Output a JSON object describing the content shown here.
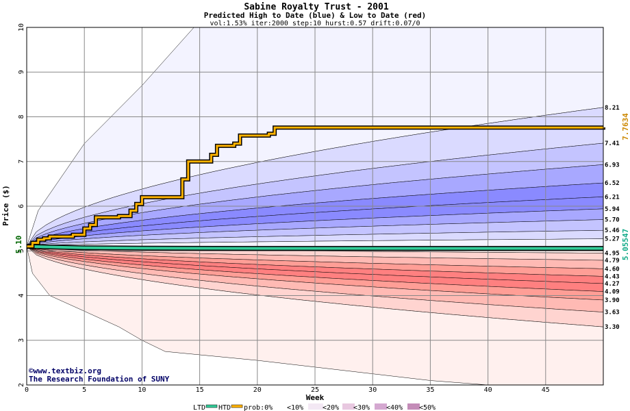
{
  "chart_data": {
    "type": "area",
    "title": "Sabine Royalty Trust - 2001",
    "subtitle": "Predicted High to Date (blue) &  Low to Date (red)",
    "params": "vol:1.53% iter:2000 step:10 hurst:0.57 drift:0.07/0",
    "xlabel": "Week",
    "ylabel": "Price ($)",
    "xlim": [
      0,
      50
    ],
    "ylim": [
      2,
      10
    ],
    "x_ticks": [
      0,
      5,
      10,
      15,
      20,
      25,
      30,
      35,
      40,
      45
    ],
    "y_ticks": [
      2,
      3,
      4,
      5,
      6,
      7,
      8,
      9,
      10
    ],
    "grid": true,
    "start_price": 5.1,
    "start_label": "5.10",
    "htd_final": 7.7634,
    "htd_label": "7.7634",
    "ltd_final": 5.05547,
    "ltd_label": "5.05547",
    "right_labels": [
      "8.21",
      "7.41",
      "6.93",
      "6.52",
      "6.21",
      "5.94",
      "5.70",
      "5.46",
      "5.27",
      "4.95",
      "4.79",
      "4.60",
      "4.43",
      "4.27",
      "4.09",
      "3.90",
      "3.63",
      "3.30"
    ],
    "upper_levels": [
      {
        "final": 8.21,
        "prob": "<10%"
      },
      {
        "final": 7.41,
        "prob": "<20%"
      },
      {
        "final": 6.93,
        "prob": "<30%"
      },
      {
        "final": 6.52,
        "prob": "<40%"
      },
      {
        "final": 6.21,
        "prob": "<50%"
      },
      {
        "final": 5.94,
        "prob": "<50%"
      },
      {
        "final": 5.7,
        "prob": "<40%"
      },
      {
        "final": 5.46,
        "prob": "<30%"
      },
      {
        "final": 5.27,
        "prob": "<20%"
      }
    ],
    "lower_levels": [
      {
        "final": 4.95,
        "prob": "<10%"
      },
      {
        "final": 4.79,
        "prob": "<20%"
      },
      {
        "final": 4.6,
        "prob": "<30%"
      },
      {
        "final": 4.43,
        "prob": "<40%"
      },
      {
        "final": 4.27,
        "prob": "<50%"
      },
      {
        "final": 4.09,
        "prob": "<40%"
      },
      {
        "final": 3.9,
        "prob": "<30%"
      },
      {
        "final": 3.63,
        "prob": "<20%"
      },
      {
        "final": 3.3,
        "prob": "<10%"
      }
    ],
    "outer_upper": {
      "x": [
        0,
        1,
        5,
        10,
        14.5,
        50
      ],
      "y": [
        5.1,
        5.9,
        7.4,
        8.7,
        10,
        10
      ]
    },
    "outer_lower": {
      "x": [
        0,
        0.5,
        2,
        5,
        8,
        10,
        12,
        16,
        20,
        25,
        30,
        35,
        40,
        50
      ],
      "y": [
        5.1,
        4.5,
        4.0,
        3.65,
        3.3,
        3.0,
        2.75,
        2.65,
        2.55,
        2.4,
        2.25,
        2.1,
        2.0,
        2.0
      ]
    },
    "htd_series": {
      "name": "HTD",
      "x": [
        0,
        0.5,
        1,
        1.5,
        2,
        4,
        5,
        5.5,
        6,
        8,
        9,
        9.5,
        10,
        13,
        13.5,
        14,
        15.5,
        16,
        16.5,
        18,
        18.5,
        21,
        21.5,
        50
      ],
      "y": [
        5.1,
        5.18,
        5.25,
        5.28,
        5.32,
        5.36,
        5.5,
        5.58,
        5.75,
        5.78,
        5.9,
        6.05,
        6.2,
        6.2,
        6.6,
        7.0,
        7.0,
        7.15,
        7.35,
        7.4,
        7.58,
        7.62,
        7.76,
        7.7634
      ]
    },
    "ltd_series": {
      "name": "LTD",
      "x": [
        0,
        5,
        10,
        20,
        50
      ],
      "y": [
        5.1,
        5.07,
        5.06,
        5.056,
        5.05547
      ]
    },
    "legend": {
      "items": [
        "LTD",
        "HTD",
        "prob:0%",
        "<10%",
        "<20%",
        "<30%",
        "<40%",
        "<50%"
      ],
      "placement": "bottom"
    },
    "colors": {
      "htd": "#ffb300",
      "ltd": "#33cc99",
      "blue": [
        "#f3f3ff",
        "#dadaff",
        "#c4c4ff",
        "#a8a8ff",
        "#8a8aff"
      ],
      "red": [
        "#fff0ee",
        "#ffd4d0",
        "#ffbab4",
        "#ff9e96",
        "#ff8080"
      ],
      "grid": "#888888"
    },
    "watermark": [
      "©www.textbiz.org",
      "The Research Foundation of SUNY"
    ]
  }
}
